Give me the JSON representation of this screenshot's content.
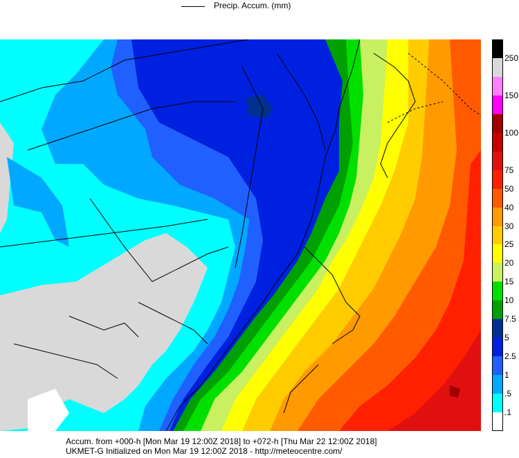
{
  "legend": {
    "label": "Precip. Accum. (mm)"
  },
  "colorbar": {
    "bins": [
      {
        "label": "250",
        "color": "#000000"
      },
      {
        "label": "",
        "color": "#d9d9d9"
      },
      {
        "label": "150",
        "color": "#ff7fff"
      },
      {
        "label": "",
        "color": "#ff00ff"
      },
      {
        "label": "100",
        "color": "#a00000"
      },
      {
        "label": "",
        "color": "#c80000"
      },
      {
        "label": "75",
        "color": "#e01010"
      },
      {
        "label": "50",
        "color": "#ff2000"
      },
      {
        "label": "40",
        "color": "#ff5a00"
      },
      {
        "label": "30",
        "color": "#ff9a00"
      },
      {
        "label": "25",
        "color": "#ffcc00"
      },
      {
        "label": "20",
        "color": "#ffff00"
      },
      {
        "label": "15",
        "color": "#c8f060"
      },
      {
        "label": "10",
        "color": "#00e000"
      },
      {
        "label": "7.5",
        "color": "#00a000"
      },
      {
        "label": "5",
        "color": "#003090"
      },
      {
        "label": "2.5",
        "color": "#0020e0"
      },
      {
        "label": "1",
        "color": "#2060ff"
      },
      {
        "label": ".5",
        "color": "#00a8ff"
      },
      {
        "label": ".1",
        "color": "#00ffff"
      },
      {
        "label": "",
        "color": "#ffffff"
      }
    ],
    "tick_labels": [
      "250",
      "150",
      "100",
      "75",
      "50",
      "40",
      "30",
      "25",
      "20",
      "15",
      "10",
      "7.5",
      "5",
      "2.5",
      "1",
      ".5",
      ".1"
    ]
  },
  "footer": {
    "line1": "Accum. from +000-h [Mon Mar 19 12:00Z 2018] to +072-h [Thu Mar 22 12:00Z 2018]",
    "line2": "UKMET-G Initialized on Mon Mar 19 12:00Z 2018 - http://meteocentre.com/"
  },
  "colors": {
    "no_precip": "#d9d9d9",
    "trace": "#00ffff",
    "light": "#00a8ff",
    "moderate": "#2060ff",
    "heavy_blue": "#0020e0",
    "dark_blue": "#003090",
    "green_dark": "#00a000",
    "green": "#00e000",
    "lime": "#c8f060",
    "yellow": "#ffff00",
    "gold": "#ffcc00",
    "orange": "#ff9a00",
    "dark_orange": "#ff5a00",
    "red": "#ff2000",
    "crimson": "#e01010",
    "dark_red": "#a00000"
  }
}
